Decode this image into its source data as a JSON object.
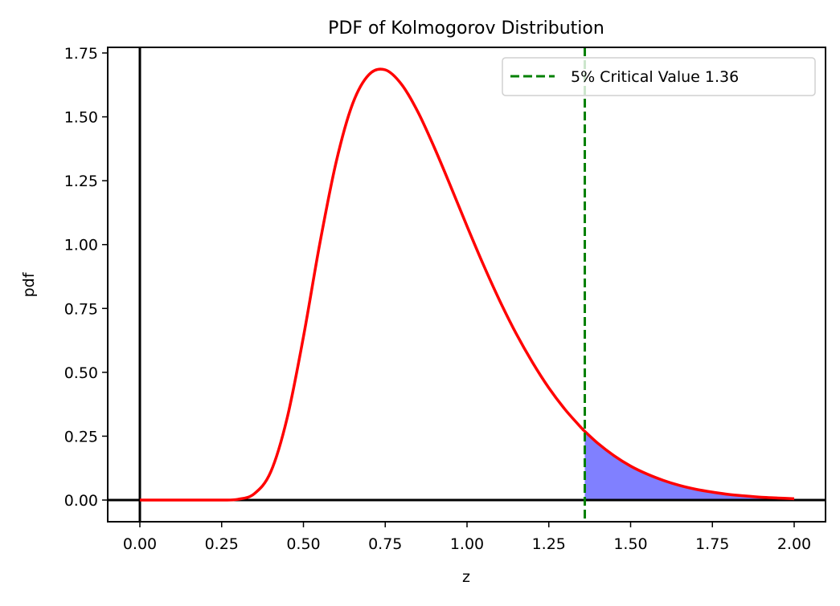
{
  "chart_data": {
    "type": "line",
    "title": "PDF of Kolmogorov Distribution",
    "xlabel": "z",
    "ylabel": "pdf",
    "xlim": [
      -0.1,
      2.1
    ],
    "ylim": [
      -0.08,
      1.77
    ],
    "grid": false,
    "xticks": [
      "0.00",
      "0.25",
      "0.50",
      "0.75",
      "1.00",
      "1.25",
      "1.50",
      "1.75",
      "2.00"
    ],
    "yticks": [
      "0.00",
      "0.25",
      "0.50",
      "0.75",
      "1.00",
      "1.25",
      "1.50",
      "1.75"
    ],
    "series": [
      {
        "name": "pdf",
        "color": "#ff0000",
        "x": [
          0.0,
          0.05,
          0.1,
          0.15,
          0.2,
          0.25,
          0.3,
          0.35,
          0.4,
          0.45,
          0.5,
          0.55,
          0.6,
          0.65,
          0.7,
          0.75,
          0.8,
          0.85,
          0.9,
          0.95,
          1.0,
          1.05,
          1.1,
          1.15,
          1.2,
          1.25,
          1.3,
          1.35,
          1.36,
          1.4,
          1.45,
          1.5,
          1.55,
          1.6,
          1.65,
          1.7,
          1.75,
          1.8,
          1.85,
          1.9,
          1.95,
          2.0
        ],
        "y": [
          0,
          0,
          0,
          0,
          0,
          0.0001,
          0.003,
          0.025,
          0.11,
          0.32,
          0.639,
          1.004,
          1.323,
          1.55,
          1.665,
          1.684,
          1.627,
          1.519,
          1.38,
          1.228,
          1.072,
          0.921,
          0.78,
          0.652,
          0.539,
          0.439,
          0.354,
          0.282,
          0.269,
          0.222,
          0.173,
          0.133,
          0.102,
          0.077,
          0.057,
          0.042,
          0.031,
          0.022,
          0.016,
          0.011,
          0.008,
          0.005
        ]
      }
    ],
    "shaded_region": {
      "from": 1.36,
      "to": 2.0,
      "color": "#8080ff"
    },
    "reference_lines": {
      "vertical_x": 0,
      "horizontal_y": 0,
      "color": "#000000"
    },
    "critical_line": {
      "x": 1.36,
      "color": "#008000",
      "style": "dashed"
    },
    "legend": {
      "position": "top-right",
      "entries": [
        {
          "label": "5% Critical Value 1.36",
          "color": "#008000",
          "style": "dashed"
        }
      ]
    }
  }
}
